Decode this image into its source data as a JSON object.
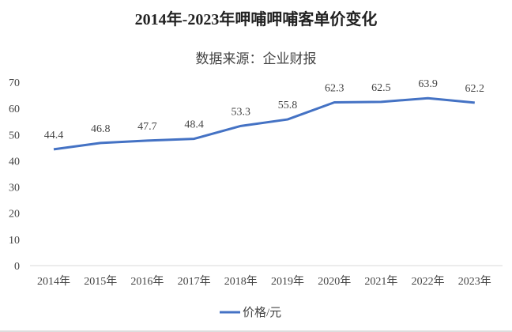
{
  "chart_data": {
    "type": "line",
    "title": "2014年-2023年呷哺呷哺客单价变化",
    "subtitle": "数据来源：企业财报",
    "categories": [
      "2014年",
      "2015年",
      "2016年",
      "2017年",
      "2018年",
      "2019年",
      "2020年",
      "2021年",
      "2022年",
      "2023年"
    ],
    "series": [
      {
        "name": "价格/元",
        "values": [
          44.4,
          46.8,
          47.7,
          48.4,
          53.3,
          55.8,
          62.3,
          62.5,
          63.9,
          62.2
        ],
        "color": "#4472C4"
      }
    ],
    "yticks": [
      0,
      10,
      20,
      30,
      40,
      50,
      60,
      70
    ],
    "ylim": [
      0,
      70
    ],
    "grid": false,
    "legend": "bottom"
  }
}
